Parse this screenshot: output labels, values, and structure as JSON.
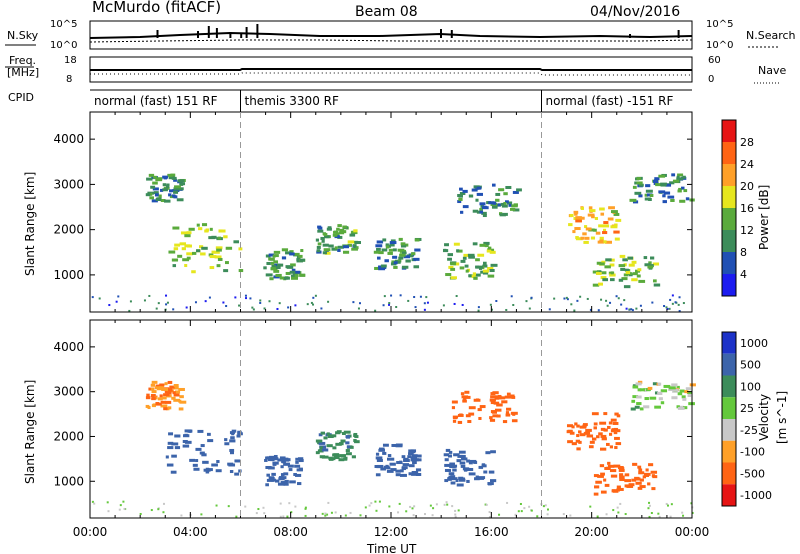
{
  "header": {
    "site": "McMurdo (fitACF)",
    "beam": "Beam 08",
    "date": "04/Nov/2016"
  },
  "strips": {
    "left_labels": [
      "N.Sky",
      "Freq.",
      "[MHz]",
      "CPID"
    ],
    "right_labels": [
      "N.Search",
      "Nave"
    ],
    "noise_ticks_left": [
      "10^5",
      "10^0"
    ],
    "noise_ticks_right": [
      "10^5",
      "10^0"
    ],
    "freq_ticks_left": [
      "18",
      "8"
    ],
    "nave_ticks_right": [
      "60",
      "0"
    ],
    "cpid_segments": [
      {
        "label": "normal (fast) 151 RF",
        "start_hour": 0
      },
      {
        "label": "themis 3300 RF",
        "start_hour": 6
      },
      {
        "label": "normal (fast) -151 RF",
        "start_hour": 18
      }
    ]
  },
  "chart_data": [
    {
      "type": "heatmap",
      "title": "",
      "xlabel": "Time UT",
      "ylabel": "Slant Range [km]",
      "x_ticks": [
        "00:00",
        "04:00",
        "08:00",
        "12:00",
        "16:00",
        "20:00",
        "00:00"
      ],
      "x_range_hours": [
        0,
        24
      ],
      "y_range_km": [
        180,
        4600
      ],
      "y_ticks": [
        1000,
        2000,
        3000,
        4000
      ],
      "colorbar": {
        "label": "Power [dB]",
        "ticks": [
          "4",
          "8",
          "12",
          "16",
          "20",
          "24",
          "28"
        ],
        "range": [
          0,
          30
        ],
        "colors": [
          "#1c1cf0",
          "#2050b4",
          "#3c8c5a",
          "#5aaa3c",
          "#e6e61e",
          "#ffa028",
          "#ff6414",
          "#e61414"
        ]
      },
      "scatter_patches": [
        {
          "t0": 3.0,
          "t1": 6.0,
          "r0": 1050,
          "r1": 2150,
          "power": 15
        },
        {
          "t0": 2.2,
          "t1": 3.6,
          "r0": 2600,
          "r1": 3200,
          "power": 10
        },
        {
          "t0": 6.9,
          "t1": 8.4,
          "r0": 900,
          "r1": 1550,
          "power": 11
        },
        {
          "t0": 9.0,
          "t1": 10.6,
          "r0": 1450,
          "r1": 2100,
          "power": 12
        },
        {
          "t0": 11.3,
          "t1": 13.0,
          "r0": 1100,
          "r1": 1800,
          "power": 10
        },
        {
          "t0": 14.0,
          "t1": 16.0,
          "r0": 900,
          "r1": 1700,
          "power": 13
        },
        {
          "t0": 14.4,
          "t1": 17.0,
          "r0": 2300,
          "r1": 3000,
          "power": 9
        },
        {
          "t0": 19.0,
          "t1": 21.0,
          "r0": 1700,
          "r1": 2500,
          "power": 20
        },
        {
          "t0": 20.0,
          "t1": 22.5,
          "r0": 700,
          "r1": 1400,
          "power": 14
        },
        {
          "t0": 21.5,
          "t1": 24.0,
          "r0": 2600,
          "r1": 3200,
          "power": 10
        }
      ]
    },
    {
      "type": "heatmap",
      "title": "",
      "xlabel": "Time UT",
      "ylabel": "Slant Range [km]",
      "x_ticks": [
        "00:00",
        "04:00",
        "08:00",
        "12:00",
        "16:00",
        "20:00",
        "00:00"
      ],
      "x_range_hours": [
        0,
        24
      ],
      "y_range_km": [
        180,
        4600
      ],
      "y_ticks": [
        1000,
        2000,
        3000,
        4000
      ],
      "colorbar": {
        "label": "Velocity",
        "unit_label": "[m s^-1]",
        "ticks": [
          "1000",
          "500",
          "100",
          "25",
          "-25",
          "-100",
          "-500",
          "-1000"
        ],
        "colors": [
          "#1c32c8",
          "#3c64aa",
          "#3c8c5a",
          "#64c83c",
          "#c8c8c8",
          "#ffa028",
          "#ff6414",
          "#e61414"
        ]
      },
      "scatter_patches": [
        {
          "t0": 3.0,
          "t1": 6.0,
          "r0": 1050,
          "r1": 2150,
          "velocity": 200
        },
        {
          "t0": 2.2,
          "t1": 3.6,
          "r0": 2600,
          "r1": 3200,
          "velocity": -100
        },
        {
          "t0": 6.9,
          "t1": 8.4,
          "r0": 900,
          "r1": 1550,
          "velocity": 200
        },
        {
          "t0": 9.0,
          "t1": 10.6,
          "r0": 1450,
          "r1": 2100,
          "velocity": 80
        },
        {
          "t0": 11.3,
          "t1": 13.0,
          "r0": 1100,
          "r1": 1800,
          "velocity": 200
        },
        {
          "t0": 14.0,
          "t1": 16.0,
          "r0": 900,
          "r1": 1700,
          "velocity": 200
        },
        {
          "t0": 14.4,
          "t1": 17.0,
          "r0": 2300,
          "r1": 3000,
          "velocity": -300
        },
        {
          "t0": 19.0,
          "t1": 21.0,
          "r0": 1700,
          "r1": 2500,
          "velocity": -300
        },
        {
          "t0": 20.0,
          "t1": 22.5,
          "r0": 700,
          "r1": 1400,
          "velocity": -150
        },
        {
          "t0": 21.5,
          "t1": 24.0,
          "r0": 2600,
          "r1": 3200,
          "velocity": 0
        }
      ]
    }
  ]
}
